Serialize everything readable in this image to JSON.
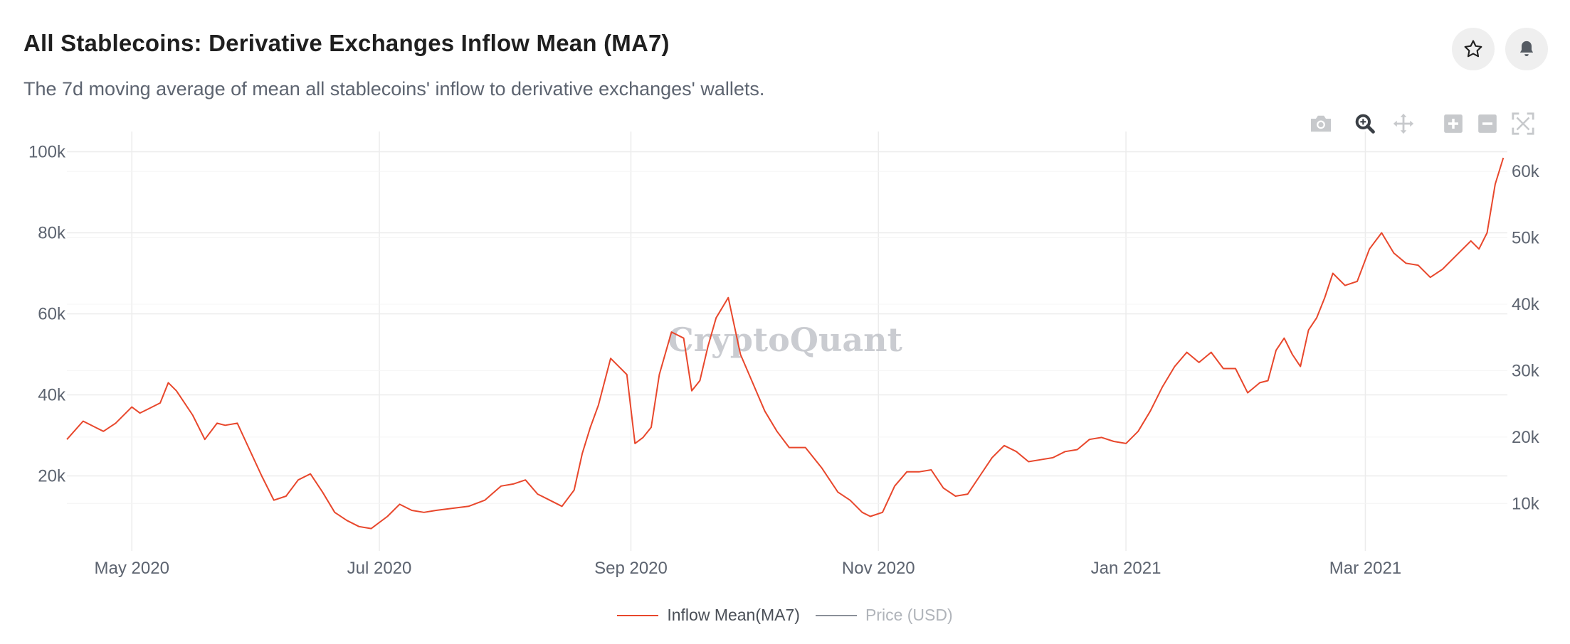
{
  "header": {
    "title": "All Stablecoins: Derivative Exchanges Inflow Mean (MA7)",
    "subtitle": "The 7d moving average of mean all stablecoins' inflow to derivative exchanges' wallets."
  },
  "buttons": {
    "favorite_icon": "star-icon",
    "alert_icon": "bell-icon"
  },
  "toolbar": [
    "camera-icon",
    "zoom-icon",
    "pan-icon",
    "zoom-in-icon",
    "zoom-out-icon",
    "autoscale-icon"
  ],
  "watermark": "CryptoQuant",
  "colors": {
    "series": "#e8472c",
    "price": "#8a8f98",
    "grid": "#ececec",
    "axis_text": "#5d6470"
  },
  "chart_data": {
    "type": "line",
    "title": "All Stablecoins: Derivative Exchanges Inflow Mean (MA7)",
    "x_ticks": [
      "May 2020",
      "Jul 2020",
      "Sep 2020",
      "Nov 2020",
      "Jan 2021",
      "Mar 2021"
    ],
    "x_tick_dates": [
      "2020-05-01",
      "2020-07-01",
      "2020-09-01",
      "2020-11-01",
      "2021-01-01",
      "2021-03-01"
    ],
    "xlim": [
      "2020-04-15",
      "2021-04-05"
    ],
    "y_ticks": [
      "20k",
      "40k",
      "60k",
      "80k",
      "100k"
    ],
    "y_tick_values": [
      20000,
      40000,
      60000,
      80000,
      100000
    ],
    "ylim": [
      5000,
      105000
    ],
    "y2_ticks": [
      "10k",
      "20k",
      "30k",
      "40k",
      "50k",
      "60k"
    ],
    "y2_tick_values": [
      10000,
      20000,
      30000,
      40000,
      50000,
      60000
    ],
    "y2lim": [
      5000,
      66000
    ],
    "grid": true,
    "legend_position": "bottom-center",
    "series": [
      {
        "name": "Inflow Mean(MA7)",
        "axis": "left",
        "color": "#e8472c",
        "x": [
          "2020-04-15",
          "2020-04-19",
          "2020-04-22",
          "2020-04-24",
          "2020-04-27",
          "2020-05-01",
          "2020-05-03",
          "2020-05-05",
          "2020-05-08",
          "2020-05-10",
          "2020-05-12",
          "2020-05-16",
          "2020-05-19",
          "2020-05-22",
          "2020-05-24",
          "2020-05-27",
          "2020-05-30",
          "2020-06-02",
          "2020-06-05",
          "2020-06-08",
          "2020-06-11",
          "2020-06-14",
          "2020-06-17",
          "2020-06-20",
          "2020-06-23",
          "2020-06-26",
          "2020-06-29",
          "2020-07-03",
          "2020-07-06",
          "2020-07-09",
          "2020-07-12",
          "2020-07-15",
          "2020-07-19",
          "2020-07-23",
          "2020-07-27",
          "2020-07-31",
          "2020-08-03",
          "2020-08-06",
          "2020-08-09",
          "2020-08-12",
          "2020-08-15",
          "2020-08-18",
          "2020-08-20",
          "2020-08-22",
          "2020-08-24",
          "2020-08-27",
          "2020-08-29",
          "2020-08-31",
          "2020-09-02",
          "2020-09-04",
          "2020-09-06",
          "2020-09-08",
          "2020-09-11",
          "2020-09-14",
          "2020-09-16",
          "2020-09-18",
          "2020-09-20",
          "2020-09-22",
          "2020-09-25",
          "2020-09-28",
          "2020-10-01",
          "2020-10-04",
          "2020-10-07",
          "2020-10-10",
          "2020-10-14",
          "2020-10-18",
          "2020-10-22",
          "2020-10-25",
          "2020-10-28",
          "2020-10-30",
          "2020-11-02",
          "2020-11-05",
          "2020-11-08",
          "2020-11-11",
          "2020-11-14",
          "2020-11-17",
          "2020-11-20",
          "2020-11-23",
          "2020-11-26",
          "2020-11-29",
          "2020-12-02",
          "2020-12-05",
          "2020-12-08",
          "2020-12-11",
          "2020-12-14",
          "2020-12-17",
          "2020-12-20",
          "2020-12-23",
          "2020-12-26",
          "2020-12-29",
          "2021-01-01",
          "2021-01-04",
          "2021-01-07",
          "2021-01-10",
          "2021-01-13",
          "2021-01-16",
          "2021-01-19",
          "2021-01-22",
          "2021-01-25",
          "2021-01-28",
          "2021-01-31",
          "2021-02-03",
          "2021-02-05",
          "2021-02-07",
          "2021-02-09",
          "2021-02-11",
          "2021-02-13",
          "2021-02-15",
          "2021-02-17",
          "2021-02-19",
          "2021-02-21",
          "2021-02-24",
          "2021-02-27",
          "2021-03-02",
          "2021-03-05",
          "2021-03-08",
          "2021-03-11",
          "2021-03-14",
          "2021-03-17",
          "2021-03-20",
          "2021-03-23",
          "2021-03-25",
          "2021-03-27",
          "2021-03-29",
          "2021-03-31",
          "2021-04-02",
          "2021-04-04"
        ],
        "y": [
          29000,
          33500,
          32000,
          31000,
          33000,
          37000,
          35500,
          36500,
          38000,
          43000,
          41000,
          35000,
          29000,
          33000,
          32500,
          33000,
          26500,
          20000,
          14000,
          15000,
          19000,
          20500,
          16000,
          11000,
          9000,
          7500,
          7000,
          10000,
          13000,
          11500,
          11000,
          11500,
          12000,
          12500,
          14000,
          17500,
          18000,
          19000,
          15500,
          14000,
          12500,
          16500,
          25500,
          32000,
          37500,
          49000,
          47000,
          45000,
          28000,
          29500,
          32000,
          45000,
          55500,
          54000,
          41000,
          43500,
          52000,
          59000,
          64000,
          50000,
          43000,
          36000,
          31000,
          27000,
          27000,
          22000,
          16000,
          14000,
          11000,
          10000,
          11000,
          17500,
          21000,
          21000,
          21500,
          17000,
          15000,
          15500,
          20000,
          24500,
          27500,
          26000,
          23500,
          24000,
          24500,
          26000,
          26500,
          29000,
          29500,
          28500,
          28000,
          31000,
          36000,
          42000,
          47000,
          50500,
          48000,
          50500,
          46500,
          46500,
          40500,
          43000,
          43500,
          51000,
          54000,
          50000,
          47000,
          56000,
          59000,
          64000,
          70000,
          67000,
          68000,
          76000,
          80000,
          75000,
          72500,
          72000,
          69000,
          71000,
          74000,
          76000,
          78000,
          76000,
          80000,
          92000,
          98500
        ]
      },
      {
        "name": "Price (USD)",
        "axis": "right",
        "color": "#8a8f98",
        "x": [],
        "y": []
      }
    ]
  }
}
